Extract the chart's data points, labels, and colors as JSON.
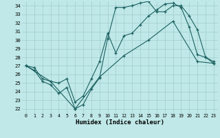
{
  "title": "",
  "xlabel": "Humidex (Indice chaleur)",
  "bg_color": "#c0e8e8",
  "grid_color": "#a0cccc",
  "line_color": "#1a6060",
  "xlim": [
    -0.5,
    23.5
  ],
  "ylim": [
    21.5,
    34.5
  ],
  "yticks": [
    22,
    23,
    24,
    25,
    26,
    27,
    28,
    29,
    30,
    31,
    32,
    33,
    34
  ],
  "xticks": [
    0,
    1,
    2,
    3,
    4,
    5,
    6,
    7,
    8,
    9,
    10,
    11,
    12,
    13,
    14,
    15,
    16,
    17,
    18,
    19,
    20,
    21,
    22,
    23
  ],
  "series1_x": [
    0,
    1,
    2,
    3,
    4,
    5,
    6,
    7,
    8,
    9,
    10,
    11,
    12,
    13,
    14,
    15,
    16,
    17,
    18,
    19,
    20,
    21,
    22,
    23
  ],
  "series1_y": [
    27.0,
    26.5,
    25.2,
    24.8,
    23.8,
    24.5,
    22.0,
    22.5,
    24.3,
    25.6,
    30.2,
    33.8,
    33.8,
    34.0,
    34.3,
    34.5,
    33.3,
    33.3,
    34.0,
    34.0,
    32.8,
    31.2,
    28.0,
    27.5
  ],
  "series2_x": [
    0,
    1,
    2,
    3,
    4,
    5,
    6,
    7,
    8,
    9,
    10,
    11,
    12,
    13,
    14,
    15,
    16,
    17,
    18,
    19,
    20,
    21,
    22,
    23
  ],
  "series2_y": [
    27.0,
    26.8,
    25.5,
    25.2,
    25.0,
    25.5,
    22.8,
    23.5,
    25.5,
    27.5,
    30.8,
    28.5,
    30.5,
    30.8,
    31.8,
    32.8,
    33.5,
    34.2,
    34.3,
    33.8,
    31.5,
    28.3,
    28.0,
    27.3
  ],
  "series3_x": [
    0,
    3,
    6,
    9,
    12,
    15,
    18,
    21,
    23
  ],
  "series3_y": [
    27.0,
    25.2,
    22.0,
    25.7,
    28.2,
    30.0,
    32.2,
    27.5,
    27.3
  ]
}
